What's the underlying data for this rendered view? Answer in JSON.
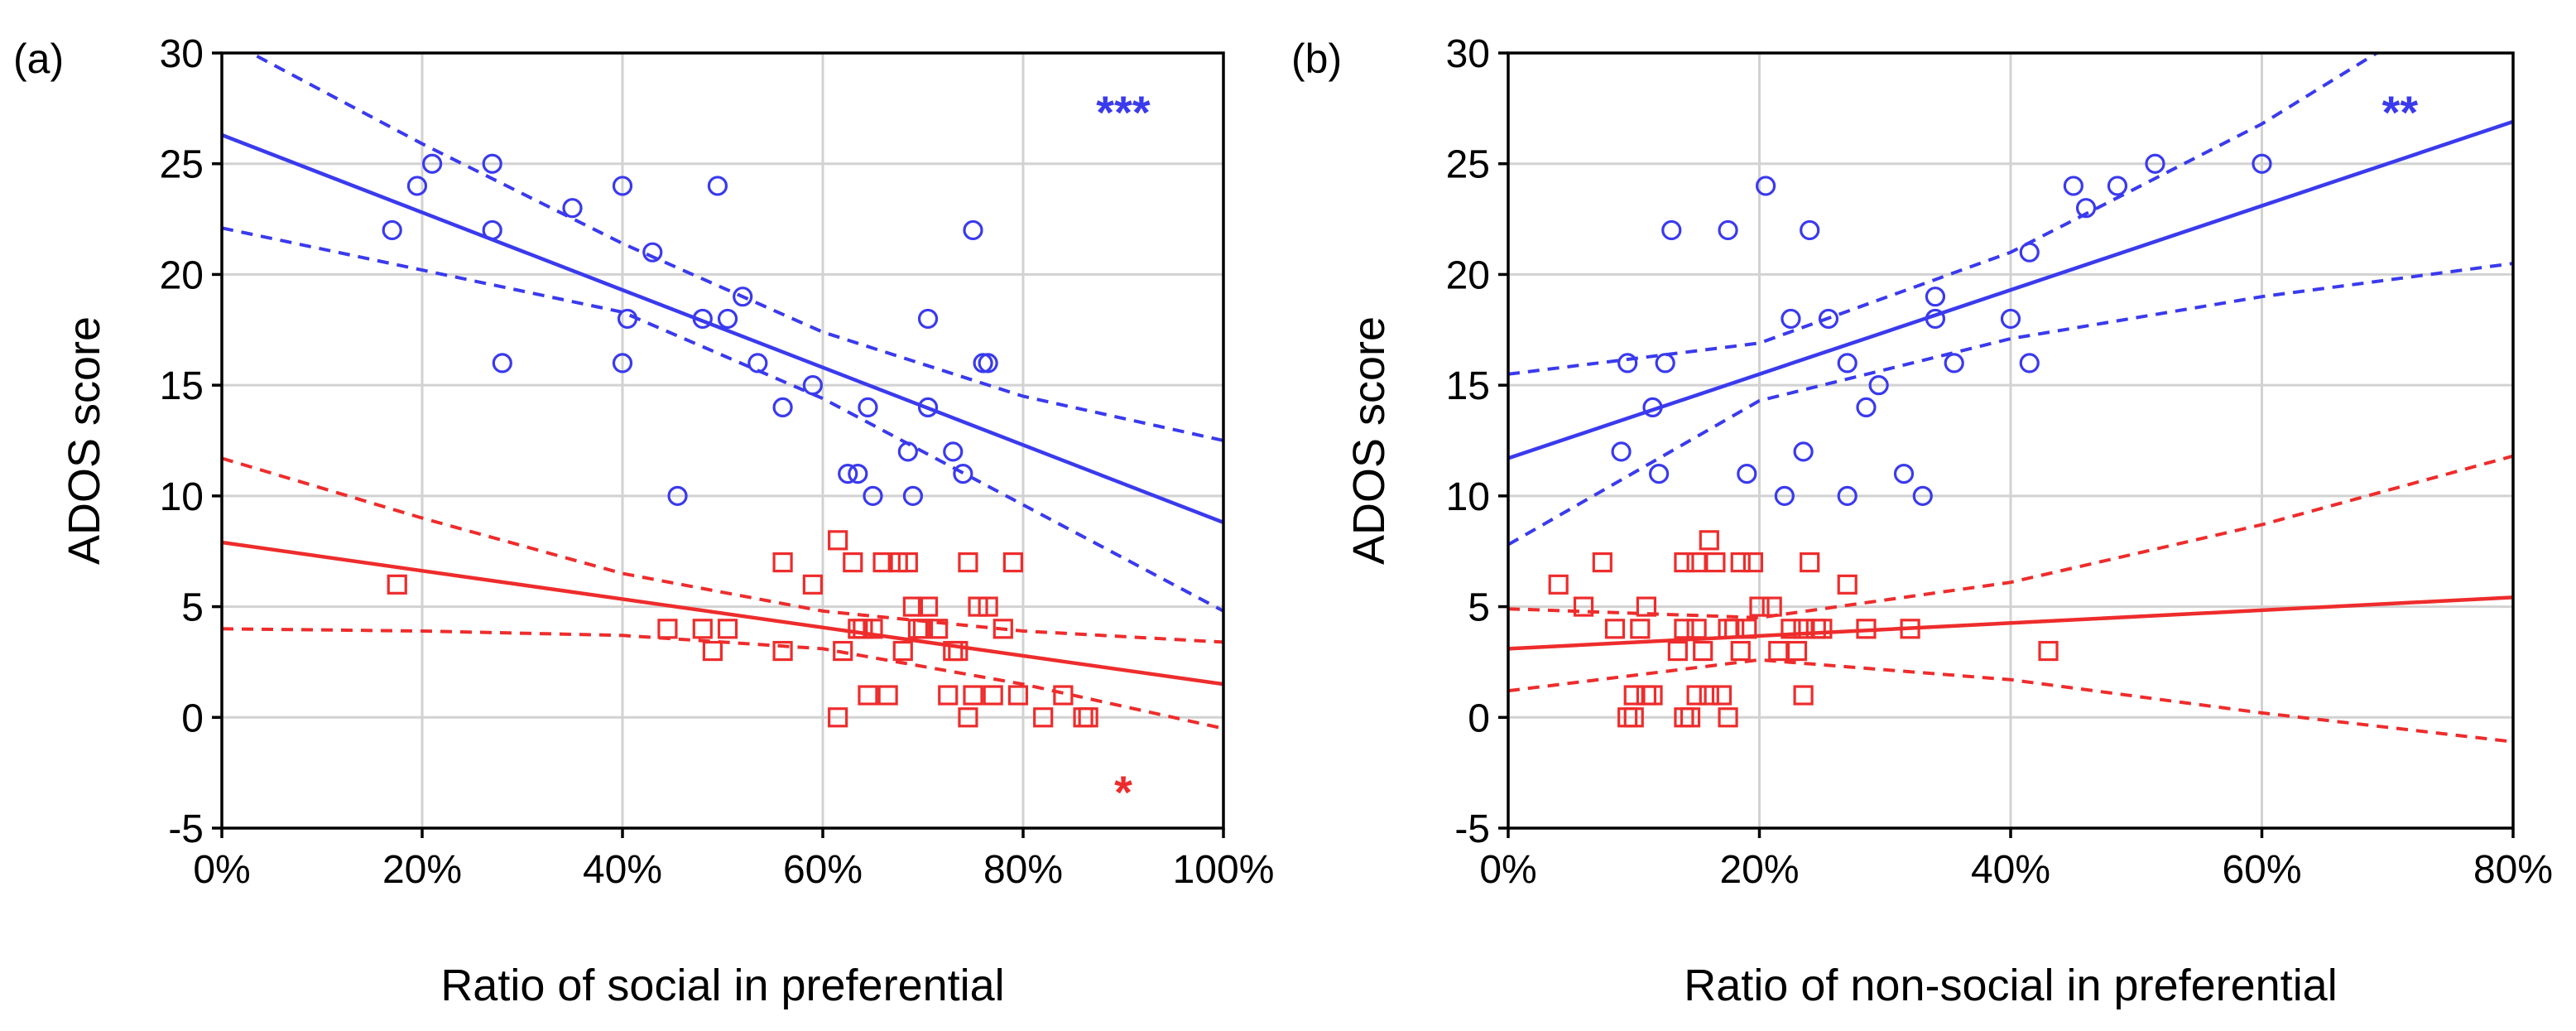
{
  "colors": {
    "blue": "#3a3aee",
    "red": "#ee2c2c",
    "grid": "#d2d2d2",
    "axis": "#000000"
  },
  "chart_data": [
    {
      "type": "scatter",
      "panel_label": "(a)",
      "xlabel": "Ratio of social in preferential",
      "ylabel": "ADOS score",
      "xlim": [
        0,
        100
      ],
      "ylim": [
        -5,
        30
      ],
      "x_ticks": [
        0,
        20,
        40,
        60,
        80,
        100
      ],
      "x_tick_labels": [
        "0%",
        "20%",
        "40%",
        "60%",
        "80%",
        "100%"
      ],
      "y_ticks": [
        -5,
        0,
        5,
        10,
        15,
        20,
        25,
        30
      ],
      "y_tick_labels": [
        "-5",
        "0",
        "5",
        "10",
        "15",
        "20",
        "25",
        "30"
      ],
      "grid": true,
      "series": [
        {
          "name": "blue group",
          "color": "blue",
          "marker": "circle",
          "points": [
            [
              17,
              22
            ],
            [
              19.5,
              24
            ],
            [
              21,
              25
            ],
            [
              27,
              25
            ],
            [
              27,
              22
            ],
            [
              28,
              16
            ],
            [
              35,
              23
            ],
            [
              40,
              24
            ],
            [
              40,
              16
            ],
            [
              40.5,
              18
            ],
            [
              43,
              21
            ],
            [
              45.5,
              10
            ],
            [
              48,
              18
            ],
            [
              49.5,
              24
            ],
            [
              50.5,
              18
            ],
            [
              52,
              19
            ],
            [
              53.5,
              16
            ],
            [
              56,
              14
            ],
            [
              59,
              15
            ],
            [
              62.5,
              11
            ],
            [
              63.5,
              11
            ],
            [
              64.5,
              14
            ],
            [
              65,
              10
            ],
            [
              68.5,
              12
            ],
            [
              69,
              10
            ],
            [
              70.5,
              18
            ],
            [
              70.5,
              14
            ],
            [
              73,
              12
            ],
            [
              74,
              11
            ],
            [
              75,
              22
            ],
            [
              76,
              16
            ],
            [
              76.5,
              16
            ]
          ],
          "fit": {
            "intercept": 26.3,
            "slope": -0.175
          },
          "ci_upper": [
            [
              0,
              30.7
            ],
            [
              20,
              25.9
            ],
            [
              40,
              21.4
            ],
            [
              60,
              17.4
            ],
            [
              80,
              14.5
            ],
            [
              100,
              12.5
            ]
          ],
          "ci_lower": [
            [
              0,
              22.1
            ],
            [
              20,
              20.2
            ],
            [
              40,
              18.3
            ],
            [
              60,
              14.4
            ],
            [
              80,
              9.6
            ],
            [
              100,
              4.8
            ]
          ]
        },
        {
          "name": "red group",
          "color": "red",
          "marker": "square",
          "points": [
            [
              17.5,
              6
            ],
            [
              44.5,
              4
            ],
            [
              48,
              4
            ],
            [
              49,
              3
            ],
            [
              50.5,
              4
            ],
            [
              56,
              7
            ],
            [
              56,
              3
            ],
            [
              59,
              6
            ],
            [
              61.5,
              8
            ],
            [
              61.5,
              0
            ],
            [
              62,
              3
            ],
            [
              63,
              7
            ],
            [
              63.5,
              4
            ],
            [
              64,
              4
            ],
            [
              64.5,
              1
            ],
            [
              65,
              4
            ],
            [
              66,
              7
            ],
            [
              66.5,
              1
            ],
            [
              67.5,
              7
            ],
            [
              68,
              3
            ],
            [
              68.5,
              7
            ],
            [
              69,
              5
            ],
            [
              69.5,
              4
            ],
            [
              70,
              4
            ],
            [
              70.5,
              5
            ],
            [
              71.5,
              4
            ],
            [
              72.5,
              1
            ],
            [
              73,
              3
            ],
            [
              73.5,
              3
            ],
            [
              74.5,
              7
            ],
            [
              74.5,
              0
            ],
            [
              75,
              1
            ],
            [
              75.5,
              5
            ],
            [
              76.5,
              5
            ],
            [
              77,
              1
            ],
            [
              78,
              4
            ],
            [
              79,
              7
            ],
            [
              79.5,
              1
            ],
            [
              82,
              0
            ],
            [
              84,
              1
            ],
            [
              86,
              0
            ],
            [
              86.5,
              0
            ]
          ],
          "fit": {
            "intercept": 7.9,
            "slope": -0.064
          },
          "ci_upper": [
            [
              0,
              11.7
            ],
            [
              20,
              9.0
            ],
            [
              40,
              6.5
            ],
            [
              60,
              4.8
            ],
            [
              80,
              3.9
            ],
            [
              100,
              3.4
            ]
          ],
          "ci_lower": [
            [
              0,
              4.0
            ],
            [
              20,
              3.9
            ],
            [
              40,
              3.7
            ],
            [
              60,
              3.1
            ],
            [
              80,
              1.5
            ],
            [
              100,
              -0.5
            ]
          ]
        }
      ],
      "annotations": [
        {
          "text": "***",
          "color": "blue",
          "x": 90,
          "y": 27.5
        },
        {
          "text": "*",
          "color": "red",
          "x": 90,
          "y": -3.2
        }
      ]
    },
    {
      "type": "scatter",
      "panel_label": "(b)",
      "xlabel": "Ratio of non-social in preferential",
      "ylabel": "ADOS score",
      "xlim": [
        0,
        80
      ],
      "ylim": [
        -5,
        30
      ],
      "x_ticks": [
        0,
        20,
        40,
        60,
        80
      ],
      "x_tick_labels": [
        "0%",
        "20%",
        "40%",
        "60%",
        "80%"
      ],
      "y_ticks": [
        -5,
        0,
        5,
        10,
        15,
        20,
        25,
        30
      ],
      "y_tick_labels": [
        "-5",
        "0",
        "5",
        "10",
        "15",
        "20",
        "25",
        "30"
      ],
      "grid": true,
      "series": [
        {
          "name": "blue group",
          "color": "blue",
          "marker": "circle",
          "points": [
            [
              9,
              12
            ],
            [
              9.5,
              16
            ],
            [
              11.5,
              14
            ],
            [
              12,
              11
            ],
            [
              12.5,
              16
            ],
            [
              13,
              22
            ],
            [
              17.5,
              22
            ],
            [
              19,
              11
            ],
            [
              20.5,
              24
            ],
            [
              22,
              10
            ],
            [
              22.5,
              18
            ],
            [
              23.5,
              12
            ],
            [
              24,
              22
            ],
            [
              25.5,
              18
            ],
            [
              27,
              16
            ],
            [
              27,
              10
            ],
            [
              28.5,
              14
            ],
            [
              29.5,
              15
            ],
            [
              31.5,
              11
            ],
            [
              33,
              10
            ],
            [
              34,
              18
            ],
            [
              34,
              19
            ],
            [
              35.5,
              16
            ],
            [
              40,
              18
            ],
            [
              41.5,
              21
            ],
            [
              41.5,
              16
            ],
            [
              45,
              24
            ],
            [
              46,
              23
            ],
            [
              48.5,
              24
            ],
            [
              51.5,
              25
            ],
            [
              60,
              25
            ]
          ],
          "fit": {
            "intercept": 11.7,
            "slope": 0.19
          },
          "ci_upper": [
            [
              0,
              15.5
            ],
            [
              20,
              16.9
            ],
            [
              40,
              21.0
            ],
            [
              60,
              26.8
            ],
            [
              72,
              31.0
            ]
          ],
          "ci_lower": [
            [
              0,
              7.8
            ],
            [
              20,
              14.3
            ],
            [
              40,
              17.1
            ],
            [
              60,
              19.0
            ],
            [
              80,
              20.5
            ]
          ]
        },
        {
          "name": "red group",
          "color": "red",
          "marker": "square",
          "points": [
            [
              4,
              6
            ],
            [
              6,
              5
            ],
            [
              7.5,
              7
            ],
            [
              8.5,
              4
            ],
            [
              9.5,
              0
            ],
            [
              10,
              0
            ],
            [
              10,
              1
            ],
            [
              10.5,
              4
            ],
            [
              11,
              5
            ],
            [
              11,
              1
            ],
            [
              11.5,
              1
            ],
            [
              13.5,
              3
            ],
            [
              14,
              4
            ],
            [
              14,
              7
            ],
            [
              14,
              0
            ],
            [
              14.5,
              0
            ],
            [
              15,
              4
            ],
            [
              15,
              7
            ],
            [
              15,
              1
            ],
            [
              15.5,
              3
            ],
            [
              16,
              8
            ],
            [
              16,
              1
            ],
            [
              16.5,
              7
            ],
            [
              17,
              1
            ],
            [
              17.5,
              0
            ],
            [
              17.5,
              4
            ],
            [
              18,
              4
            ],
            [
              18.5,
              7
            ],
            [
              18.5,
              3
            ],
            [
              19,
              4
            ],
            [
              19.5,
              7
            ],
            [
              20,
              5
            ],
            [
              21,
              5
            ],
            [
              21.5,
              3
            ],
            [
              22.5,
              4
            ],
            [
              23,
              3
            ],
            [
              23.5,
              1
            ],
            [
              23.5,
              4
            ],
            [
              24,
              7
            ],
            [
              24.5,
              4
            ],
            [
              25,
              4
            ],
            [
              27,
              6
            ],
            [
              28.5,
              4
            ],
            [
              32,
              4
            ],
            [
              43,
              3
            ]
          ],
          "fit": {
            "intercept": 3.1,
            "slope": 0.029
          },
          "ci_upper": [
            [
              0,
              4.9
            ],
            [
              20,
              4.5
            ],
            [
              40,
              6.1
            ],
            [
              60,
              8.7
            ],
            [
              80,
              11.8
            ]
          ],
          "ci_lower": [
            [
              0,
              1.2
            ],
            [
              20,
              2.6
            ],
            [
              40,
              1.7
            ],
            [
              60,
              0.2
            ],
            [
              80,
              -1.1
            ]
          ]
        }
      ],
      "annotations": [
        {
          "text": "**",
          "color": "blue",
          "x": 71,
          "y": 27.5
        }
      ]
    }
  ]
}
